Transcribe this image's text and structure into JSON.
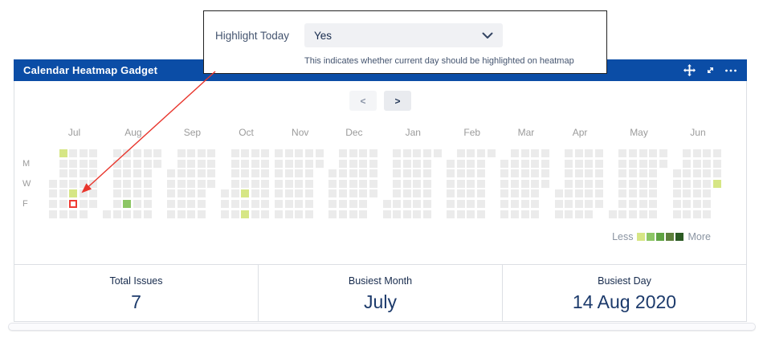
{
  "popup": {
    "label": "Highlight Today",
    "select_value": "Yes",
    "helper": "This indicates whether current day should be highlighted on heatmap"
  },
  "gadget": {
    "title": "Calendar Heatmap Gadget",
    "header_color": "#0b4da6",
    "icons": [
      "move-icon",
      "expand-icon",
      "more-icon"
    ],
    "nav": {
      "prev": "<",
      "next": ">"
    },
    "legend": {
      "less": "Less",
      "more": "More"
    },
    "stats": [
      {
        "label": "Total Issues",
        "value": "7"
      },
      {
        "label": "Busiest Month",
        "value": "July"
      },
      {
        "label": "Busiest Day",
        "value": "14 Aug 2020"
      }
    ]
  },
  "heatmap": {
    "day_labels": [
      "M",
      "W",
      "F"
    ],
    "months": [
      {
        "label": "Jul",
        "first_dow": 3,
        "days": 31
      },
      {
        "label": "Aug",
        "first_dow": 6,
        "days": 31
      },
      {
        "label": "Sep",
        "first_dow": 2,
        "days": 30
      },
      {
        "label": "Oct",
        "first_dow": 4,
        "days": 31
      },
      {
        "label": "Nov",
        "first_dow": 0,
        "days": 30
      },
      {
        "label": "Dec",
        "first_dow": 2,
        "days": 31
      },
      {
        "label": "Jan",
        "first_dow": 5,
        "days": 31
      },
      {
        "label": "Feb",
        "first_dow": 1,
        "days": 28
      },
      {
        "label": "Mar",
        "first_dow": 1,
        "days": 31
      },
      {
        "label": "Apr",
        "first_dow": 4,
        "days": 30
      },
      {
        "label": "May",
        "first_dow": 6,
        "days": 31
      },
      {
        "label": "Jun",
        "first_dow": 2,
        "days": 30
      }
    ],
    "cells": [
      {
        "month": 0,
        "day": 5,
        "level": 1
      },
      {
        "month": 0,
        "day": 16,
        "level": 1
      },
      {
        "month": 1,
        "day": 14,
        "level": 2
      },
      {
        "month": 3,
        "day": 15,
        "level": 1
      },
      {
        "month": 3,
        "day": 17,
        "level": 1
      },
      {
        "month": 11,
        "day": 30,
        "level": 1
      }
    ],
    "today": {
      "month": 0,
      "day": 17
    },
    "colors": {
      "empty": "#ebebeb",
      "levels": [
        "#d6e685",
        "#8cc665",
        "#5fa342",
        "#5d7f3b",
        "#2b5a23"
      ],
      "today_border": "#ee3b33",
      "annotation": "#e8352c"
    }
  }
}
